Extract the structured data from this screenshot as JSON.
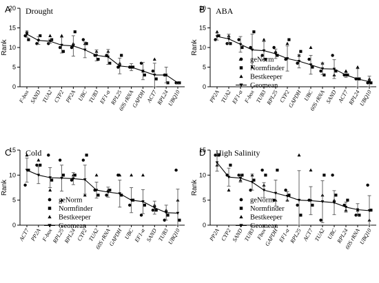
{
  "chart_data": [
    {
      "letter": "A",
      "type": "scatter",
      "title": "Drought",
      "ylabel": "Rank",
      "ylim": [
        0,
        20
      ],
      "yticks": [
        0,
        5,
        10,
        15,
        20
      ],
      "categories": [
        "F-box",
        "SAND",
        "TUA2",
        "CYP2",
        "PP2A",
        "UBC",
        "TUB3",
        "EF1-α",
        "RPL25",
        "60S rRNA",
        "GAPDH",
        "ACT7",
        "RPL24",
        "UBQ10"
      ],
      "series": [
        {
          "name": "geNorm",
          "marker": "circle",
          "values": [
            13,
            11,
            11,
            10,
            10,
            12,
            8,
            8,
            5,
            5,
            6,
            4,
            3,
            1
          ]
        },
        {
          "name": "Normfinder",
          "marker": "square",
          "values": [
            12,
            13,
            12,
            9,
            14,
            11,
            7,
            6,
            8,
            5,
            3,
            2,
            1,
            1
          ]
        },
        {
          "name": "Bestkeeper",
          "marker": "triangle",
          "values": [
            14,
            12,
            13,
            13,
            11,
            11,
            9,
            9,
            6,
            5,
            4,
            7,
            3,
            1
          ]
        },
        {
          "name": "Geomean",
          "marker": "triangle-down",
          "values": [
            13.4,
            11.8,
            11.6,
            10.6,
            10.4,
            9.4,
            8.0,
            7.6,
            5.3,
            5.0,
            4.0,
            3.0,
            3.0,
            1.0
          ],
          "errors": [
            0.8,
            1.0,
            0.5,
            2.0,
            2.6,
            2.0,
            1.4,
            1.9,
            2.0,
            0.9,
            2.2,
            3.0,
            2.0,
            0.2
          ]
        }
      ]
    },
    {
      "letter": "B",
      "type": "scatter",
      "title": "ABA",
      "ylabel": "Rank",
      "ylim": [
        0,
        20
      ],
      "yticks": [
        0,
        5,
        10,
        15,
        20
      ],
      "categories": [
        "PP2A",
        "TUA2",
        "EF1-α",
        "F-box",
        "TUB3",
        "RPL25",
        "CYP2",
        "GAPDH",
        "UBC",
        "60S rRNA",
        "SAND",
        "ACT7",
        "RPL24",
        "UBQ10"
      ],
      "series": [
        {
          "name": "geNorm",
          "marker": "circle",
          "values": [
            12,
            11,
            12,
            10,
            8,
            10,
            7,
            6,
            7,
            4,
            8,
            3,
            2,
            1
          ]
        },
        {
          "name": "Normfinder",
          "marker": "square",
          "values": [
            13,
            11,
            10,
            14,
            7,
            8,
            12,
            9,
            5,
            3,
            4,
            3,
            2,
            1
          ]
        },
        {
          "name": "Bestkeeper",
          "marker": "triangle",
          "values": [
            14,
            13,
            7,
            5,
            12,
            9,
            11,
            8,
            10,
            6,
            3,
            4,
            5,
            2
          ]
        },
        {
          "name": "Geomean",
          "marker": "triangle-down",
          "values": [
            12.8,
            12.2,
            10.8,
            9.4,
            9.2,
            8.4,
            7.2,
            6.5,
            5.6,
            4.6,
            4.5,
            3.0,
            2.0,
            1.3
          ],
          "errors": [
            0.9,
            1.2,
            2.0,
            4.0,
            2.3,
            1.2,
            3.2,
            1.7,
            2.4,
            1.5,
            2.4,
            0.6,
            2.6,
            1.4
          ]
        }
      ]
    },
    {
      "letter": "C",
      "type": "scatter",
      "title": "Cold",
      "ylabel": "Rank",
      "ylim": [
        0,
        15
      ],
      "yticks": [
        0,
        5,
        10,
        15
      ],
      "categories": [
        "ACT7",
        "PP2A",
        "F-box",
        "RPL25",
        "RPL24",
        "CYP2",
        "TUA2",
        "60S rRNA",
        "GAPDH",
        "UBC",
        "EF1-α",
        "SAND",
        "TUB3",
        "UBQ10"
      ],
      "series": [
        {
          "name": "geNorm",
          "marker": "circle",
          "values": [
            8,
            12,
            14,
            13,
            9,
            13,
            7,
            6,
            10,
            4,
            2,
            3,
            1,
            11
          ]
        },
        {
          "name": "Normfinder",
          "marker": "square",
          "values": [
            11,
            12,
            9,
            10,
            10,
            14,
            6,
            7,
            6,
            5,
            4,
            3,
            2,
            1
          ]
        },
        {
          "name": "Bestkeeper",
          "marker": "triangle",
          "values": [
            14,
            13,
            7,
            5,
            10,
            6,
            10,
            7,
            10,
            10,
            10,
            4,
            3,
            5
          ]
        },
        {
          "name": "Geomean",
          "marker": "triangle-down",
          "values": [
            11.0,
            10.0,
            9.5,
            9.4,
            9.3,
            9.1,
            7.0,
            6.6,
            6.3,
            5.0,
            4.7,
            3.5,
            2.5,
            2.4
          ],
          "errors": [
            2.4,
            1.7,
            2.0,
            2.6,
            1.2,
            2.9,
            1.6,
            1.0,
            2.7,
            2.5,
            2.4,
            1.3,
            1.5,
            4.8
          ]
        }
      ]
    },
    {
      "letter": "D",
      "type": "scatter",
      "title": "High Salinity",
      "ylabel": "Rank",
      "ylim": [
        0,
        15
      ],
      "yticks": [
        0,
        5,
        10,
        15
      ],
      "categories": [
        "PP2A",
        "CYP2",
        "SAND",
        "TUB3",
        "Fbox",
        "GAPDH",
        "EF1-α",
        "RPL25",
        "ACT7",
        "TUA2",
        "UBC",
        "RPL24",
        "60S rRNA",
        "UBQ10"
      ],
      "series": [
        {
          "name": "geNorm",
          "marker": "circle",
          "values": [
            14,
            10,
            10,
            7,
            11,
            5,
            7,
            4,
            5,
            1,
            10,
            4,
            2,
            8
          ]
        },
        {
          "name": "Normfinder",
          "marker": "square",
          "values": [
            14,
            12,
            10,
            9,
            10,
            11,
            6,
            2,
            4,
            10,
            6,
            5,
            2,
            3
          ]
        },
        {
          "name": "Bestkeeper",
          "marker": "triangle",
          "values": [
            12,
            7,
            9,
            10,
            8,
            5,
            5,
            14,
            11,
            6,
            5,
            3,
            3,
            1
          ]
        },
        {
          "name": "Geomean",
          "marker": "triangle-down",
          "values": [
            12.5,
            9.6,
            9.4,
            8.6,
            7.0,
            6.4,
            5.8,
            5.0,
            4.9,
            4.7,
            4.5,
            3.6,
            3.1,
            2.9
          ],
          "errors": [
            1.7,
            1.8,
            0.8,
            1.6,
            1.5,
            2.6,
            0.9,
            5.9,
            2.8,
            4.2,
            2.4,
            1.0,
            1.2,
            3.0
          ]
        }
      ]
    }
  ]
}
